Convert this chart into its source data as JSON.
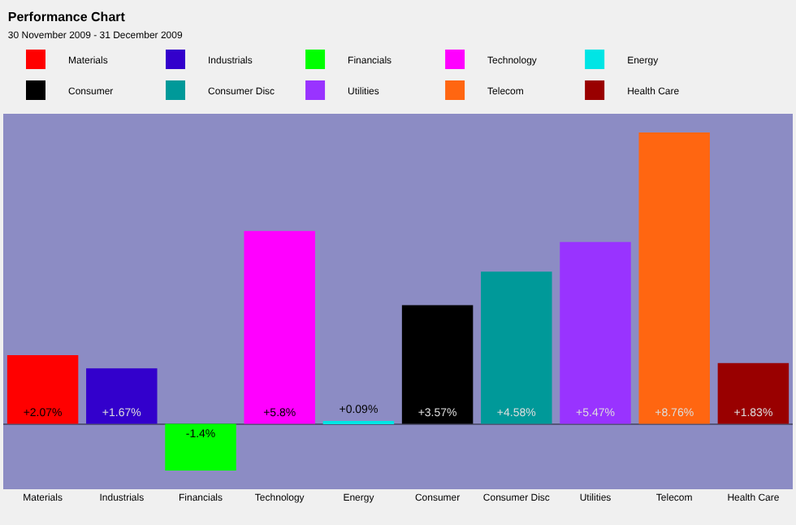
{
  "chart_data": {
    "type": "bar",
    "title": "Performance Chart",
    "subtitle": "30 November 2009 - 31 December 2009",
    "categories": [
      "Materials",
      "Industrials",
      "Financials",
      "Technology",
      "Energy",
      "Consumer",
      "Consumer Disc",
      "Utilities",
      "Telecom",
      "Health Care"
    ],
    "series": [
      {
        "name": "Materials",
        "color": "#ff0000",
        "values": [
          2.07,
          null,
          null,
          null,
          null,
          null,
          null,
          null,
          null,
          null
        ],
        "value_labels": [
          "+2.07%",
          null,
          null,
          null,
          null,
          null,
          null,
          null,
          null,
          null
        ]
      },
      {
        "name": "Industrials",
        "color": "#3300cc",
        "values": [
          null,
          1.67,
          null,
          null,
          null,
          null,
          null,
          null,
          null,
          null
        ],
        "value_labels": [
          null,
          "+1.67%",
          null,
          null,
          null,
          null,
          null,
          null,
          null,
          null
        ]
      },
      {
        "name": "Financials",
        "color": "#00ff00",
        "values": [
          null,
          null,
          -1.4,
          null,
          null,
          null,
          null,
          null,
          null,
          null
        ],
        "value_labels": [
          null,
          null,
          "-1.4%",
          null,
          null,
          null,
          null,
          null,
          null,
          null
        ]
      },
      {
        "name": "Technology",
        "color": "#ff00ff",
        "values": [
          null,
          null,
          null,
          5.8,
          null,
          null,
          null,
          null,
          null,
          null
        ],
        "value_labels": [
          null,
          null,
          null,
          "+5.8%",
          null,
          null,
          null,
          null,
          null,
          null
        ]
      },
      {
        "name": "Energy",
        "color": "#00e5e5",
        "values": [
          null,
          null,
          null,
          null,
          0.09,
          null,
          null,
          null,
          null,
          null
        ],
        "value_labels": [
          null,
          null,
          null,
          null,
          "+0.09%",
          null,
          null,
          null,
          null,
          null
        ]
      },
      {
        "name": "Consumer",
        "color": "#000000",
        "values": [
          null,
          null,
          null,
          null,
          null,
          3.57,
          null,
          null,
          null,
          null
        ],
        "value_labels": [
          null,
          null,
          null,
          null,
          null,
          "+3.57%",
          null,
          null,
          null,
          null
        ]
      },
      {
        "name": "Consumer Disc",
        "color": "#009999",
        "values": [
          null,
          null,
          null,
          null,
          null,
          null,
          4.58,
          null,
          null,
          null
        ],
        "value_labels": [
          null,
          null,
          null,
          null,
          null,
          null,
          "+4.58%",
          null,
          null,
          null
        ]
      },
      {
        "name": "Utilities",
        "color": "#9933ff",
        "values": [
          null,
          null,
          null,
          null,
          null,
          null,
          null,
          5.47,
          null,
          null
        ],
        "value_labels": [
          null,
          null,
          null,
          null,
          null,
          null,
          null,
          "+5.47%",
          null,
          null
        ]
      },
      {
        "name": "Telecom",
        "color": "#ff6611",
        "values": [
          null,
          null,
          null,
          null,
          null,
          null,
          null,
          null,
          8.76,
          null
        ],
        "value_labels": [
          null,
          null,
          null,
          null,
          null,
          null,
          null,
          null,
          "+8.76%",
          null
        ]
      },
      {
        "name": "Health Care",
        "color": "#990000",
        "values": [
          null,
          null,
          null,
          null,
          null,
          null,
          null,
          null,
          null,
          1.83
        ],
        "value_labels": [
          null,
          null,
          null,
          null,
          null,
          null,
          null,
          null,
          null,
          "+1.83%"
        ]
      }
    ],
    "legend": "top",
    "grid": false
  }
}
